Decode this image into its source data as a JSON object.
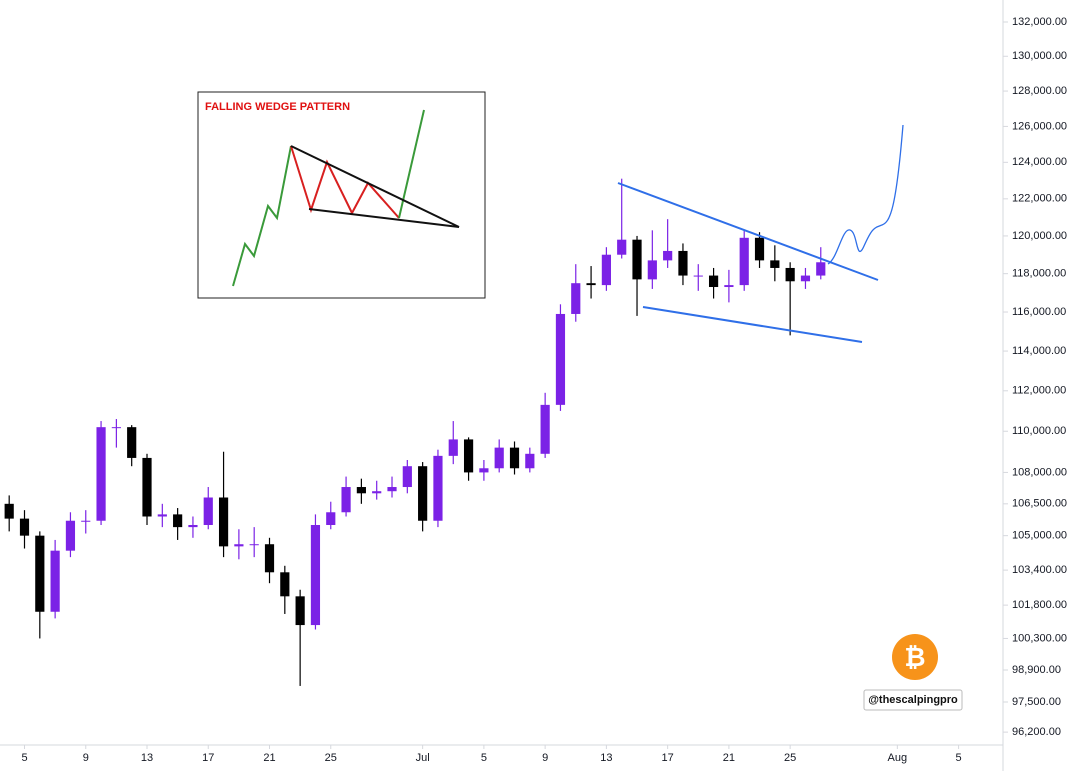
{
  "chart_data": {
    "type": "candlestick",
    "x": [
      3,
      4,
      5,
      6,
      7,
      8,
      9,
      10,
      11,
      12,
      13,
      14,
      15,
      16,
      17,
      18,
      19,
      20,
      21,
      22,
      23,
      24,
      25,
      26,
      27,
      28,
      29,
      30,
      31,
      32,
      33,
      34,
      35,
      36,
      37,
      38,
      39,
      40,
      41,
      42,
      43,
      44,
      45,
      46,
      47,
      48,
      49,
      50,
      51,
      52,
      53,
      54,
      55,
      56
    ],
    "open": [
      106500,
      105800,
      105000,
      101500,
      104300,
      105700,
      105700,
      110200,
      110200,
      108700,
      105900,
      106000,
      105400,
      105500,
      106800,
      104500,
      104600,
      104600,
      103300,
      102200,
      100900,
      105500,
      106100,
      107300,
      107000,
      107100,
      107300,
      108300,
      105700,
      108800,
      109600,
      108000,
      108200,
      109200,
      108200,
      108900,
      111300,
      115900,
      117500,
      117400,
      119000,
      119800,
      117700,
      118700,
      119200,
      117900,
      117900,
      117300,
      117400,
      119900,
      118700,
      118300,
      117600,
      117900
    ],
    "high": [
      106900,
      106200,
      105200,
      104800,
      106100,
      106200,
      110500,
      110600,
      110300,
      108900,
      106500,
      106300,
      105900,
      107300,
      109000,
      105300,
      105400,
      104900,
      103600,
      102500,
      106000,
      106600,
      107800,
      107700,
      107600,
      107800,
      108600,
      108500,
      109100,
      110500,
      109700,
      108600,
      109600,
      109500,
      109200,
      111900,
      116400,
      118500,
      118400,
      119400,
      123100,
      120000,
      120300,
      120900,
      119600,
      118500,
      118300,
      118200,
      120300,
      120200,
      119500,
      118600,
      118300,
      119400
    ],
    "low": [
      105200,
      104400,
      100300,
      101200,
      104000,
      105100,
      105500,
      109200,
      108300,
      105500,
      105400,
      104800,
      104900,
      105300,
      104000,
      103900,
      104000,
      102800,
      101400,
      98200,
      100700,
      105300,
      105900,
      106500,
      106700,
      106800,
      107000,
      105200,
      105400,
      108400,
      107600,
      107600,
      108000,
      107900,
      108000,
      108700,
      111000,
      115500,
      116700,
      117100,
      118800,
      115800,
      117200,
      118300,
      117400,
      117100,
      116700,
      116500,
      117100,
      118300,
      117600,
      114800,
      117200,
      117700
    ],
    "close": [
      105800,
      105000,
      101500,
      104300,
      105700,
      105700,
      110200,
      110200,
      108700,
      105900,
      106000,
      105400,
      105500,
      106800,
      104500,
      104600,
      104600,
      103300,
      102200,
      100900,
      105500,
      106100,
      107300,
      107000,
      107100,
      107300,
      108300,
      105700,
      108800,
      109600,
      108000,
      108200,
      109200,
      108200,
      108900,
      111300,
      115900,
      117500,
      117400,
      119000,
      119800,
      117700,
      118700,
      119200,
      117900,
      117900,
      117300,
      117400,
      119900,
      118700,
      118300,
      117600,
      117900,
      118600
    ],
    "up_color": "#7b22e6",
    "down_color": "#000000",
    "log_scale": true,
    "grid": false,
    "xlim": [
      2.4,
      67.9
    ],
    "xticks": [
      {
        "value": 4,
        "label": "5"
      },
      {
        "value": 8,
        "label": "9"
      },
      {
        "value": 12,
        "label": "13"
      },
      {
        "value": 16,
        "label": "17"
      },
      {
        "value": 20,
        "label": "21"
      },
      {
        "value": 24,
        "label": "25"
      },
      {
        "value": 30,
        "label": "Jul"
      },
      {
        "value": 34,
        "label": "5"
      },
      {
        "value": 38,
        "label": "9"
      },
      {
        "value": 42,
        "label": "13"
      },
      {
        "value": 46,
        "label": "17"
      },
      {
        "value": 50,
        "label": "21"
      },
      {
        "value": 54,
        "label": "25"
      },
      {
        "value": 61,
        "label": "Aug"
      },
      {
        "value": 65,
        "label": "5"
      }
    ],
    "ylim": [
      95650,
      133300
    ],
    "yticks": [
      {
        "value": 132000,
        "label": "132,000.00"
      },
      {
        "value": 130000,
        "label": "130,000.00"
      },
      {
        "value": 128000,
        "label": "128,000.00"
      },
      {
        "value": 126000,
        "label": "126,000.00"
      },
      {
        "value": 124000,
        "label": "124,000.00"
      },
      {
        "value": 122000,
        "label": "122,000.00"
      },
      {
        "value": 120000,
        "label": "120,000.00"
      },
      {
        "value": 118000,
        "label": "118,000.00"
      },
      {
        "value": 116000,
        "label": "116,000.00"
      },
      {
        "value": 114000,
        "label": "114,000.00"
      },
      {
        "value": 112000,
        "label": "112,000.00"
      },
      {
        "value": 110000,
        "label": "110,000.00"
      },
      {
        "value": 108000,
        "label": "108,000.00"
      },
      {
        "value": 106500,
        "label": "106,500.00"
      },
      {
        "value": 105000,
        "label": "105,000.00"
      },
      {
        "value": 103400,
        "label": "103,400.00"
      },
      {
        "value": 101800,
        "label": "101,800.00"
      },
      {
        "value": 100300,
        "label": "100,300.00"
      },
      {
        "value": 98900,
        "label": "98,900.00"
      },
      {
        "value": 97500,
        "label": "97,500.00"
      },
      {
        "value": 96200,
        "label": "96,200.00"
      }
    ],
    "annotations": {
      "pattern_label": "FALLING WEDGE PATTERN",
      "watermark": "@thescalpingpro",
      "badge": "₿"
    }
  }
}
